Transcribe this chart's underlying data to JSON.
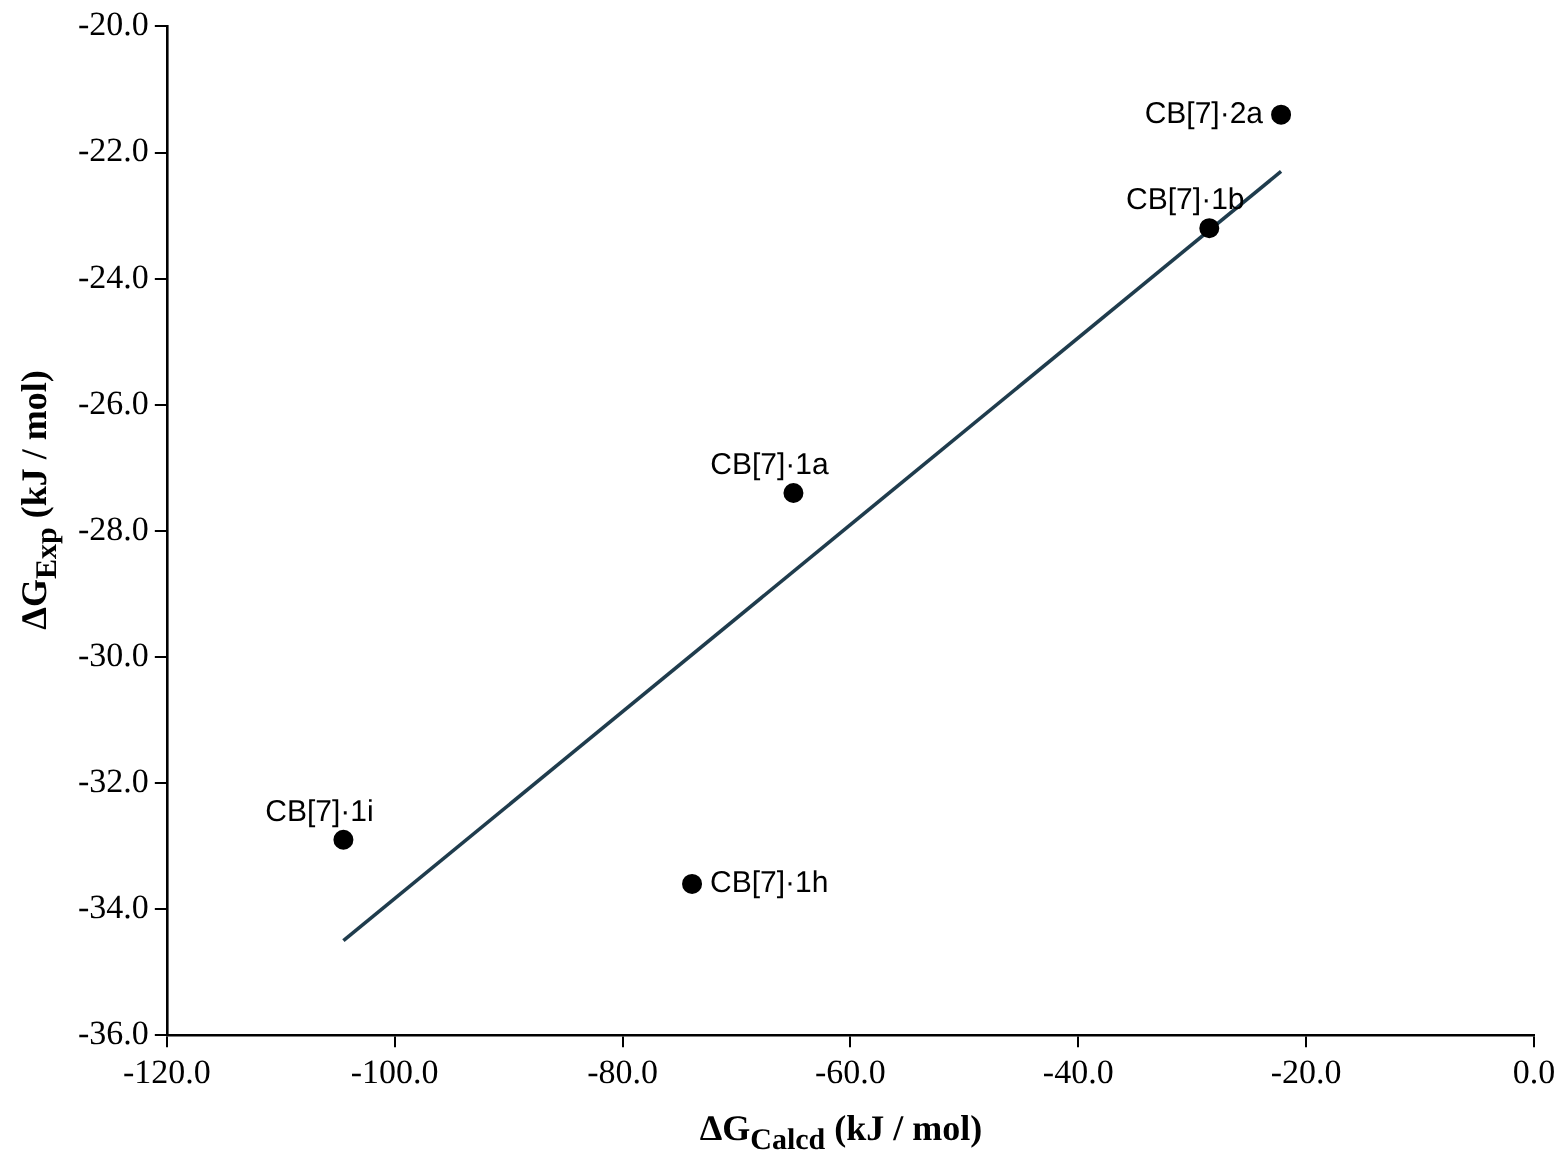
{
  "chart_data": {
    "type": "scatter",
    "xlabel": "ΔG$_{Calcd}$ (kJ / mol)",
    "ylabel": "ΔG$_{Exp}$ (kJ / mol)",
    "series": [
      {
        "color": "#000000",
        "x": [
          -22.2,
          -28.5,
          -65,
          -104.5,
          -73.9
        ],
        "values": [
          -21.4,
          -23.2,
          -27.4,
          -32.9,
          -33.6
        ],
        "marker": "circle"
      },
      {
        "type": "line",
        "color": "#1f3c4d",
        "x": [
          -104.5,
          -22.2
        ],
        "values": [
          -34.5,
          -22.3
        ],
        "marker": "none"
      }
    ],
    "annotations": [
      {
        "text": "CB[7]·2a",
        "x": -22.2,
        "y": -21.4
      },
      {
        "text": "CB[7]·1b",
        "x": -28.5,
        "y": -23.2
      },
      {
        "text": "CB[7]·1a",
        "x": -65,
        "y": -27.4
      },
      {
        "text": "CB[7]·1i",
        "x": -104.5,
        "y": -32.9
      },
      {
        "text": "CB[7]·1h",
        "x": -73.9,
        "y": -33.6
      }
    ],
    "xlim": [
      -120,
      0
    ],
    "xticks": [
      {
        "value": -120,
        "label": "-120.0"
      },
      {
        "value": -100,
        "label": "-100.0"
      },
      {
        "value": -80,
        "label": "-80.0"
      },
      {
        "value": -60,
        "label": "-60.0"
      },
      {
        "value": -40,
        "label": "-40.0"
      },
      {
        "value": -20,
        "label": "-20.0"
      },
      {
        "value": 0,
        "label": "0.0"
      }
    ],
    "ylim": [
      -36,
      -20
    ],
    "yticks": [
      {
        "value": -36,
        "label": "-36.0"
      },
      {
        "value": -34,
        "label": "-34.0"
      },
      {
        "value": -32,
        "label": "-32.0"
      },
      {
        "value": -30,
        "label": "-30.0"
      },
      {
        "value": -28,
        "label": "-28.0"
      },
      {
        "value": -26,
        "label": "-26.0"
      },
      {
        "value": -24,
        "label": "-24.0"
      },
      {
        "value": -22,
        "label": "-22.0"
      },
      {
        "value": -20,
        "label": "-20.0"
      }
    ],
    "grid": false,
    "legend": false
  }
}
